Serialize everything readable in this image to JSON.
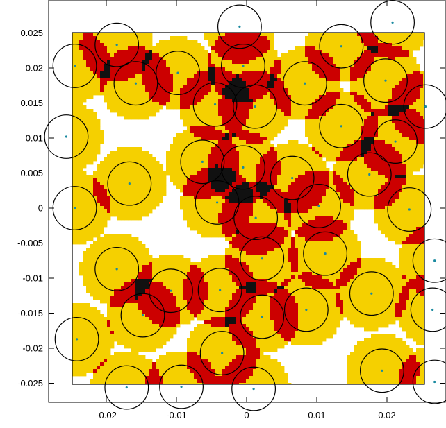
{
  "chart_data": {
    "type": "scatter",
    "title": "",
    "xlabel": "",
    "ylabel": "",
    "xlim": [
      -0.025,
      0.025
    ],
    "ylim": [
      -0.025,
      0.025
    ],
    "grid": false,
    "x_ticks": [
      {
        "value": -0.02,
        "label": "-0.02"
      },
      {
        "value": -0.01,
        "label": "-0.01"
      },
      {
        "value": 0,
        "label": "0"
      },
      {
        "value": 0.01,
        "label": "0.01"
      },
      {
        "value": 0.02,
        "label": "0.02"
      }
    ],
    "y_ticks": [
      {
        "value": 0.025,
        "label": "0.025"
      },
      {
        "value": 0.02,
        "label": "0.02"
      },
      {
        "value": 0.015,
        "label": "0.015"
      },
      {
        "value": 0.01,
        "label": "0.01"
      },
      {
        "value": 0.005,
        "label": "0.005"
      },
      {
        "value": 0,
        "label": "0"
      },
      {
        "value": -0.005,
        "label": "-0.005"
      },
      {
        "value": -0.01,
        "label": "-0.01"
      },
      {
        "value": -0.015,
        "label": "-0.015"
      },
      {
        "value": -0.02,
        "label": "-0.02"
      },
      {
        "value": -0.025,
        "label": "-0.025"
      }
    ],
    "circle_radius": 0.0031,
    "fill_radius": 0.0052,
    "colors": {
      "fill": "#f5d000",
      "overlap": "#cc0000",
      "dense": "#111111",
      "point": "#1a8aa0",
      "circle": "#000000"
    },
    "points": [
      {
        "x": -0.0185,
        "y": 0.0233
      },
      {
        "x": -0.0245,
        "y": 0.0203
      },
      {
        "x": -0.0158,
        "y": 0.0178
      },
      {
        "x": -0.0098,
        "y": 0.0193
      },
      {
        "x": -0.001,
        "y": 0.0259
      },
      {
        "x": -0.0005,
        "y": 0.0203
      },
      {
        "x": -0.0045,
        "y": 0.0148
      },
      {
        "x": 0.0012,
        "y": 0.0145
      },
      {
        "x": 0.0083,
        "y": 0.0178
      },
      {
        "x": 0.0135,
        "y": 0.0231
      },
      {
        "x": 0.0208,
        "y": 0.0265
      },
      {
        "x": 0.0198,
        "y": 0.0182
      },
      {
        "x": 0.0255,
        "y": 0.0145
      },
      {
        "x": 0.0135,
        "y": 0.0117
      },
      {
        "x": -0.0257,
        "y": 0.0102
      },
      {
        "x": 0.0212,
        "y": 0.0095
      },
      {
        "x": -0.0063,
        "y": 0.0066
      },
      {
        "x": -0.0005,
        "y": 0.0058
      },
      {
        "x": 0.0065,
        "y": 0.0043
      },
      {
        "x": 0.0175,
        "y": 0.0048
      },
      {
        "x": -0.0167,
        "y": 0.0035
      },
      {
        "x": -0.0042,
        "y": 0.0008
      },
      {
        "x": -0.0245,
        "y": 0.0
      },
      {
        "x": 0.0103,
        "y": 0.0003
      },
      {
        "x": 0.0232,
        "y": -0.0002
      },
      {
        "x": 0.0013,
        "y": -0.0014
      },
      {
        "x": 0.0112,
        "y": -0.0065
      },
      {
        "x": 0.0022,
        "y": -0.0072
      },
      {
        "x": 0.0268,
        "y": -0.0075
      },
      {
        "x": -0.0185,
        "y": -0.0087
      },
      {
        "x": -0.0108,
        "y": -0.0118
      },
      {
        "x": -0.0038,
        "y": -0.0117
      },
      {
        "x": 0.0178,
        "y": -0.0122
      },
      {
        "x": -0.0148,
        "y": -0.0153
      },
      {
        "x": 0.0085,
        "y": -0.0145
      },
      {
        "x": 0.0022,
        "y": -0.0155
      },
      {
        "x": 0.0265,
        "y": -0.0145
      },
      {
        "x": -0.0242,
        "y": -0.0187
      },
      {
        "x": -0.0035,
        "y": -0.0207
      },
      {
        "x": 0.0193,
        "y": -0.0232
      },
      {
        "x": -0.0171,
        "y": -0.0256
      },
      {
        "x": -0.0093,
        "y": -0.0255
      },
      {
        "x": 0.001,
        "y": -0.0258
      },
      {
        "x": 0.0268,
        "y": -0.0248
      }
    ]
  }
}
